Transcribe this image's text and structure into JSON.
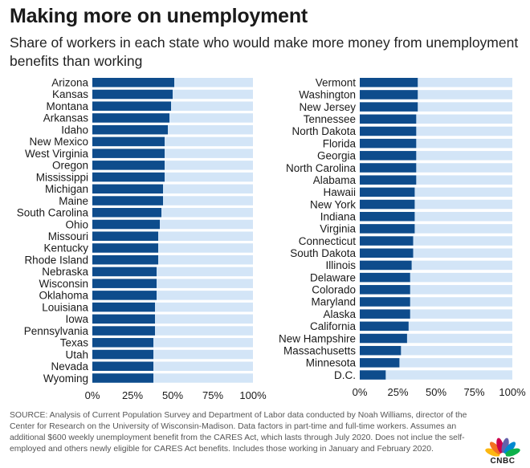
{
  "title": "Making more on unemployment",
  "subtitle": "Share of workers in each state who would make more money from unemployment benefits than working",
  "source": "SOURCE: Analysis of Current Population Survey and Department of Labor data conducted by Noah Williams, director of the Center for Research on the University of Wisconsin-Madison. Data factors in part-time and full-time workers. Assumes an additional $600 weekly unemployment benefit from the CARES Act, which lasts through July 2020. Does not inclue the self-employed and others newly eligible for CARES Act benefits. Includes those working in January and February 2020.",
  "logo": {
    "text": "CNBC",
    "colors": [
      "#fcb711",
      "#f37021",
      "#cc004c",
      "#6460aa",
      "#0089d0",
      "#0db14b"
    ]
  },
  "colors": {
    "bar": "#0e4c8c",
    "track": "#d3e5f7"
  },
  "chart_data": [
    {
      "type": "bar",
      "orientation": "horizontal",
      "categories": [
        "Arizona",
        "Kansas",
        "Montana",
        "Arkansas",
        "Idaho",
        "New Mexico",
        "West Virginia",
        "Oregon",
        "Mississippi",
        "Michigan",
        "Maine",
        "South Carolina",
        "Ohio",
        "Missouri",
        "Kentucky",
        "Rhode Island",
        "Nebraska",
        "Wisconsin",
        "Oklahoma",
        "Louisiana",
        "Iowa",
        "Pennsylvania",
        "Texas",
        "Utah",
        "Nevada",
        "Wyoming"
      ],
      "values": [
        51,
        50,
        49,
        48,
        47,
        45,
        45,
        45,
        45,
        44,
        44,
        43,
        42,
        41,
        41,
        41,
        40,
        40,
        40,
        39,
        39,
        39,
        38,
        38,
        38,
        38
      ],
      "xlim": [
        0,
        100
      ],
      "xticks": [
        "0%",
        "25%",
        "50%",
        "75%",
        "100%"
      ]
    },
    {
      "type": "bar",
      "orientation": "horizontal",
      "categories": [
        "Vermont",
        "Washington",
        "New Jersey",
        "Tennessee",
        "North Dakota",
        "Florida",
        "Georgia",
        "North Carolina",
        "Alabama",
        "Hawaii",
        "New York",
        "Indiana",
        "Virginia",
        "Connecticut",
        "South Dakota",
        "Illinois",
        "Delaware",
        "Colorado",
        "Maryland",
        "Alaska",
        "California",
        "New Hampshire",
        "Massachusetts",
        "Minnesota",
        "D.C."
      ],
      "values": [
        38,
        38,
        38,
        37,
        37,
        37,
        37,
        37,
        37,
        36,
        36,
        36,
        36,
        35,
        35,
        34,
        33,
        33,
        33,
        33,
        32,
        31,
        27,
        26,
        17
      ],
      "xlim": [
        0,
        100
      ],
      "xticks": [
        "0%",
        "25%",
        "50%",
        "75%",
        "100%"
      ]
    }
  ]
}
